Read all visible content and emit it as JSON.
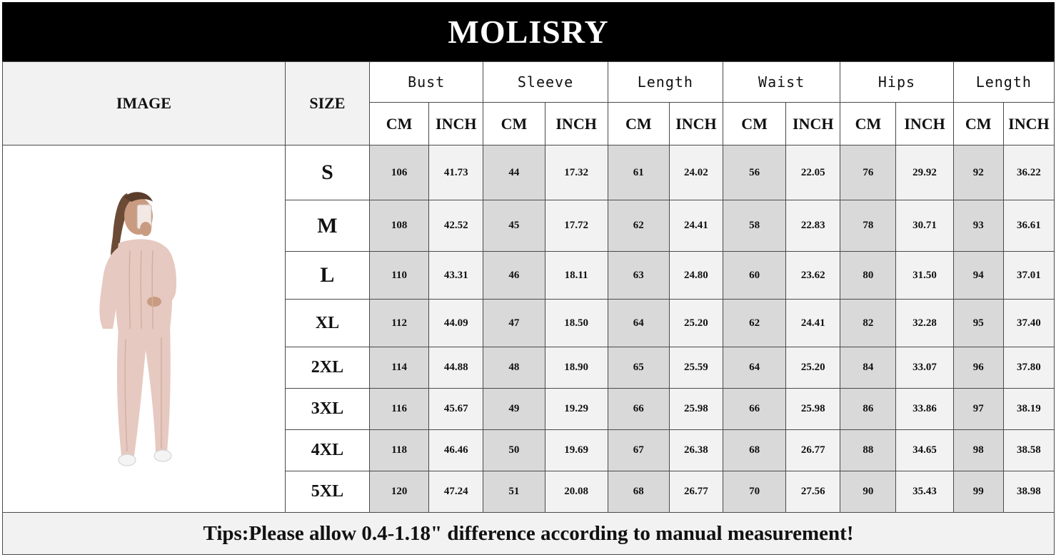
{
  "brand": "MOLISRY",
  "headers": {
    "image": "IMAGE",
    "size": "SIZE",
    "groups": [
      "Bust",
      "Sleeve",
      "Length",
      "Waist",
      "Hips",
      "Length"
    ],
    "cm": "CM",
    "inch": "INCH"
  },
  "image_icon": "model-in-pink-knit-tracksuit",
  "colors": {
    "header_bar": "#000000",
    "cm_cell": "#d9d9d9",
    "inch_cell": "#f2f2f2",
    "outfit": "#e6c9c0"
  },
  "rows": [
    {
      "size": "S",
      "values": [
        "106",
        "41.73",
        "44",
        "17.32",
        "61",
        "24.02",
        "56",
        "22.05",
        "76",
        "29.92",
        "92",
        "36.22"
      ]
    },
    {
      "size": "M",
      "values": [
        "108",
        "42.52",
        "45",
        "17.72",
        "62",
        "24.41",
        "58",
        "22.83",
        "78",
        "30.71",
        "93",
        "36.61"
      ]
    },
    {
      "size": "L",
      "values": [
        "110",
        "43.31",
        "46",
        "18.11",
        "63",
        "24.80",
        "60",
        "23.62",
        "80",
        "31.50",
        "94",
        "37.01"
      ]
    },
    {
      "size": "XL",
      "values": [
        "112",
        "44.09",
        "47",
        "18.50",
        "64",
        "25.20",
        "62",
        "24.41",
        "82",
        "32.28",
        "95",
        "37.40"
      ]
    },
    {
      "size": "2XL",
      "values": [
        "114",
        "44.88",
        "48",
        "18.90",
        "65",
        "25.59",
        "64",
        "25.20",
        "84",
        "33.07",
        "96",
        "37.80"
      ]
    },
    {
      "size": "3XL",
      "values": [
        "116",
        "45.67",
        "49",
        "19.29",
        "66",
        "25.98",
        "66",
        "25.98",
        "86",
        "33.86",
        "97",
        "38.19"
      ]
    },
    {
      "size": "4XL",
      "values": [
        "118",
        "46.46",
        "50",
        "19.69",
        "67",
        "26.38",
        "68",
        "26.77",
        "88",
        "34.65",
        "98",
        "38.58"
      ]
    },
    {
      "size": "5XL",
      "values": [
        "120",
        "47.24",
        "51",
        "20.08",
        "68",
        "26.77",
        "70",
        "27.56",
        "90",
        "35.43",
        "99",
        "38.98"
      ]
    }
  ],
  "tips": "Tips:Please allow 0.4-1.18\" difference according to manual measurement!"
}
